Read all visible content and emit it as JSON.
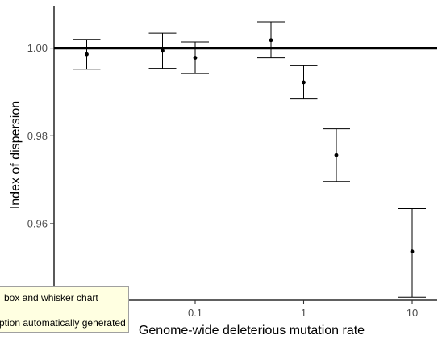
{
  "chart_data": {
    "type": "scatter",
    "xlabel": "Genome-wide deleterious mutation rate",
    "ylabel": "Index of dispersion",
    "x_scale": "log",
    "xlim": [
      0.005,
      17
    ],
    "ylim": [
      0.9425,
      1.0095
    ],
    "x_ticks": [
      {
        "value": 0.1,
        "label": "0.1"
      },
      {
        "value": 1,
        "label": "1"
      },
      {
        "value": 10,
        "label": "10"
      }
    ],
    "y_ticks": [
      {
        "value": 0.96,
        "label": "0.96"
      },
      {
        "value": 0.98,
        "label": "0.98"
      },
      {
        "value": 1.0,
        "label": "1.00"
      }
    ],
    "reference_line": 1.0,
    "points": [
      {
        "x": 0.01,
        "y": 0.9986,
        "lower": 0.9952,
        "upper": 1.002
      },
      {
        "x": 0.05,
        "y": 0.9994,
        "lower": 0.9954,
        "upper": 1.0034
      },
      {
        "x": 0.1,
        "y": 0.9978,
        "lower": 0.9942,
        "upper": 1.0014
      },
      {
        "x": 0.5,
        "y": 1.0018,
        "lower": 0.9978,
        "upper": 1.006
      },
      {
        "x": 1,
        "y": 0.9922,
        "lower": 0.9884,
        "upper": 0.996
      },
      {
        "x": 2,
        "y": 0.9756,
        "lower": 0.9696,
        "upper": 0.9816
      },
      {
        "x": 10,
        "y": 0.9536,
        "lower": 0.9432,
        "upper": 0.9634
      }
    ],
    "grid": false,
    "legend": "none"
  },
  "overlay": {
    "tooltip_line1": "box and whisker chart",
    "tooltip_line2": "ption automatically generated"
  }
}
